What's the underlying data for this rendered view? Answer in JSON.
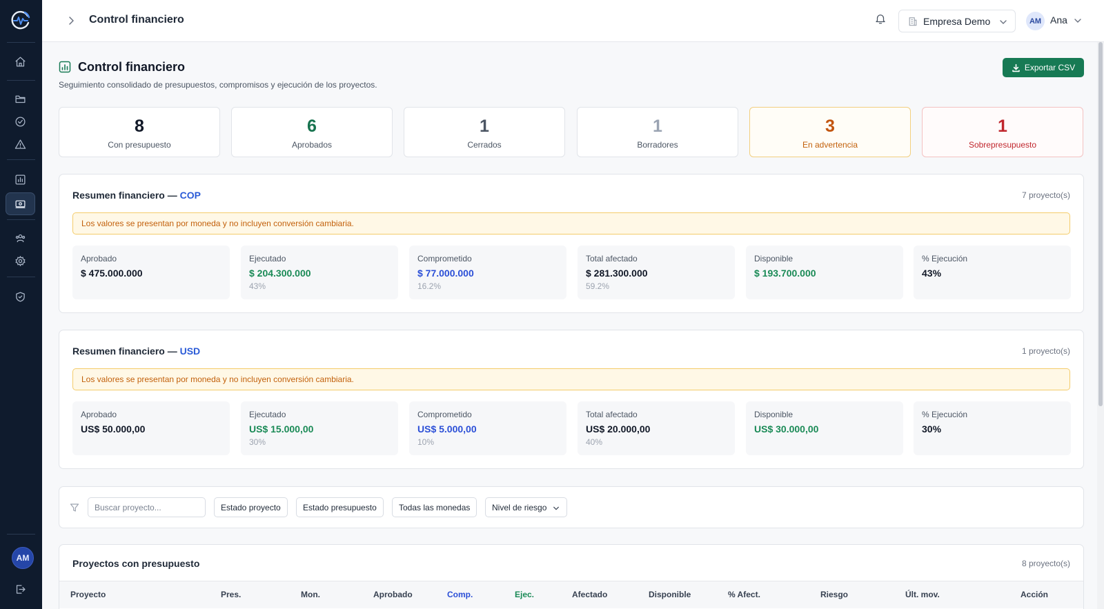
{
  "topbar": {
    "title": "Control financiero",
    "company": "Empresa Demo",
    "user_initials": "AM",
    "user_name": "Ana"
  },
  "sidebar": {
    "avatar_initials": "AM",
    "items": [
      {
        "name": "home-icon"
      },
      {
        "name": "folder-icon"
      },
      {
        "name": "check-circle-icon"
      },
      {
        "name": "warning-icon"
      },
      {
        "name": "chart-icon"
      },
      {
        "name": "money-icon",
        "active": true
      },
      {
        "name": "users-icon"
      },
      {
        "name": "settings-icon"
      },
      {
        "name": "shield-icon"
      },
      {
        "name": "logout-icon"
      }
    ]
  },
  "page": {
    "title": "Control financiero",
    "subtitle": "Seguimiento consolidado de presupuestos, compromisos y ejecución de los proyectos.",
    "export_label": "Exportar CSV"
  },
  "stats": [
    {
      "value": "8",
      "label": "Con presupuesto",
      "color": "#111827"
    },
    {
      "value": "6",
      "label": "Aprobados",
      "color": "#17734f"
    },
    {
      "value": "1",
      "label": "Cerrados",
      "color": "#4b5563"
    },
    {
      "value": "1",
      "label": "Borradores",
      "color": "#9aa3b2"
    },
    {
      "value": "3",
      "label": "En advertencia",
      "color": "#c2550f"
    },
    {
      "value": "1",
      "label": "Sobrepresupuesto",
      "color": "#c0262d"
    }
  ],
  "summaries": [
    {
      "title_prefix": "Resumen financiero — ",
      "currency": "COP",
      "count": "7 proyecto(s)",
      "notice": "Los valores se presentan por moneda y no incluyen conversión cambiaria.",
      "metrics": [
        {
          "label": "Aprobado",
          "value": "$ 475.000.000",
          "pct": ""
        },
        {
          "label": "Ejecutado",
          "value": "$ 204.300.000",
          "pct": "43%"
        },
        {
          "label": "Comprometido",
          "value": "$ 77.000.000",
          "pct": "16.2%"
        },
        {
          "label": "Total afectado",
          "value": "$ 281.300.000",
          "pct": "59.2%"
        },
        {
          "label": "Disponible",
          "value": "$ 193.700.000",
          "pct": ""
        },
        {
          "label": "% Ejecución",
          "value": "43%",
          "pct": ""
        }
      ]
    },
    {
      "title_prefix": "Resumen financiero — ",
      "currency": "USD",
      "count": "1 proyecto(s)",
      "notice": "Los valores se presentan por moneda y no incluyen conversión cambiaria.",
      "metrics": [
        {
          "label": "Aprobado",
          "value": "US$ 50.000,00",
          "pct": ""
        },
        {
          "label": "Ejecutado",
          "value": "US$ 15.000,00",
          "pct": "30%"
        },
        {
          "label": "Comprometido",
          "value": "US$ 5.000,00",
          "pct": "10%"
        },
        {
          "label": "Total afectado",
          "value": "US$ 20.000,00",
          "pct": "40%"
        },
        {
          "label": "Disponible",
          "value": "US$ 30.000,00",
          "pct": ""
        },
        {
          "label": "% Ejecución",
          "value": "30%",
          "pct": ""
        }
      ]
    }
  ],
  "filters": {
    "search_placeholder": "Buscar proyecto...",
    "project_status": "Estado proyecto",
    "budget_status": "Estado presupuesto",
    "currencies": "Todas las monedas",
    "risk_level": "Nivel de riesgo"
  },
  "projects": {
    "title": "Proyectos con presupuesto",
    "count": "8 proyecto(s)",
    "columns": [
      "Proyecto",
      "Pres.",
      "Mon.",
      "Aprobado",
      "Comp.",
      "Ejec.",
      "Afectado",
      "Disponible",
      "% Afect.",
      "Riesgo",
      "Últ. mov.",
      "Acción"
    ]
  },
  "colors": {
    "sidebar_bg": "#0f1b2d",
    "primary_green": "#177a54",
    "accent_blue": "#2b5bd7",
    "warning_orange": "#c2550f",
    "danger_red": "#c0262d"
  }
}
